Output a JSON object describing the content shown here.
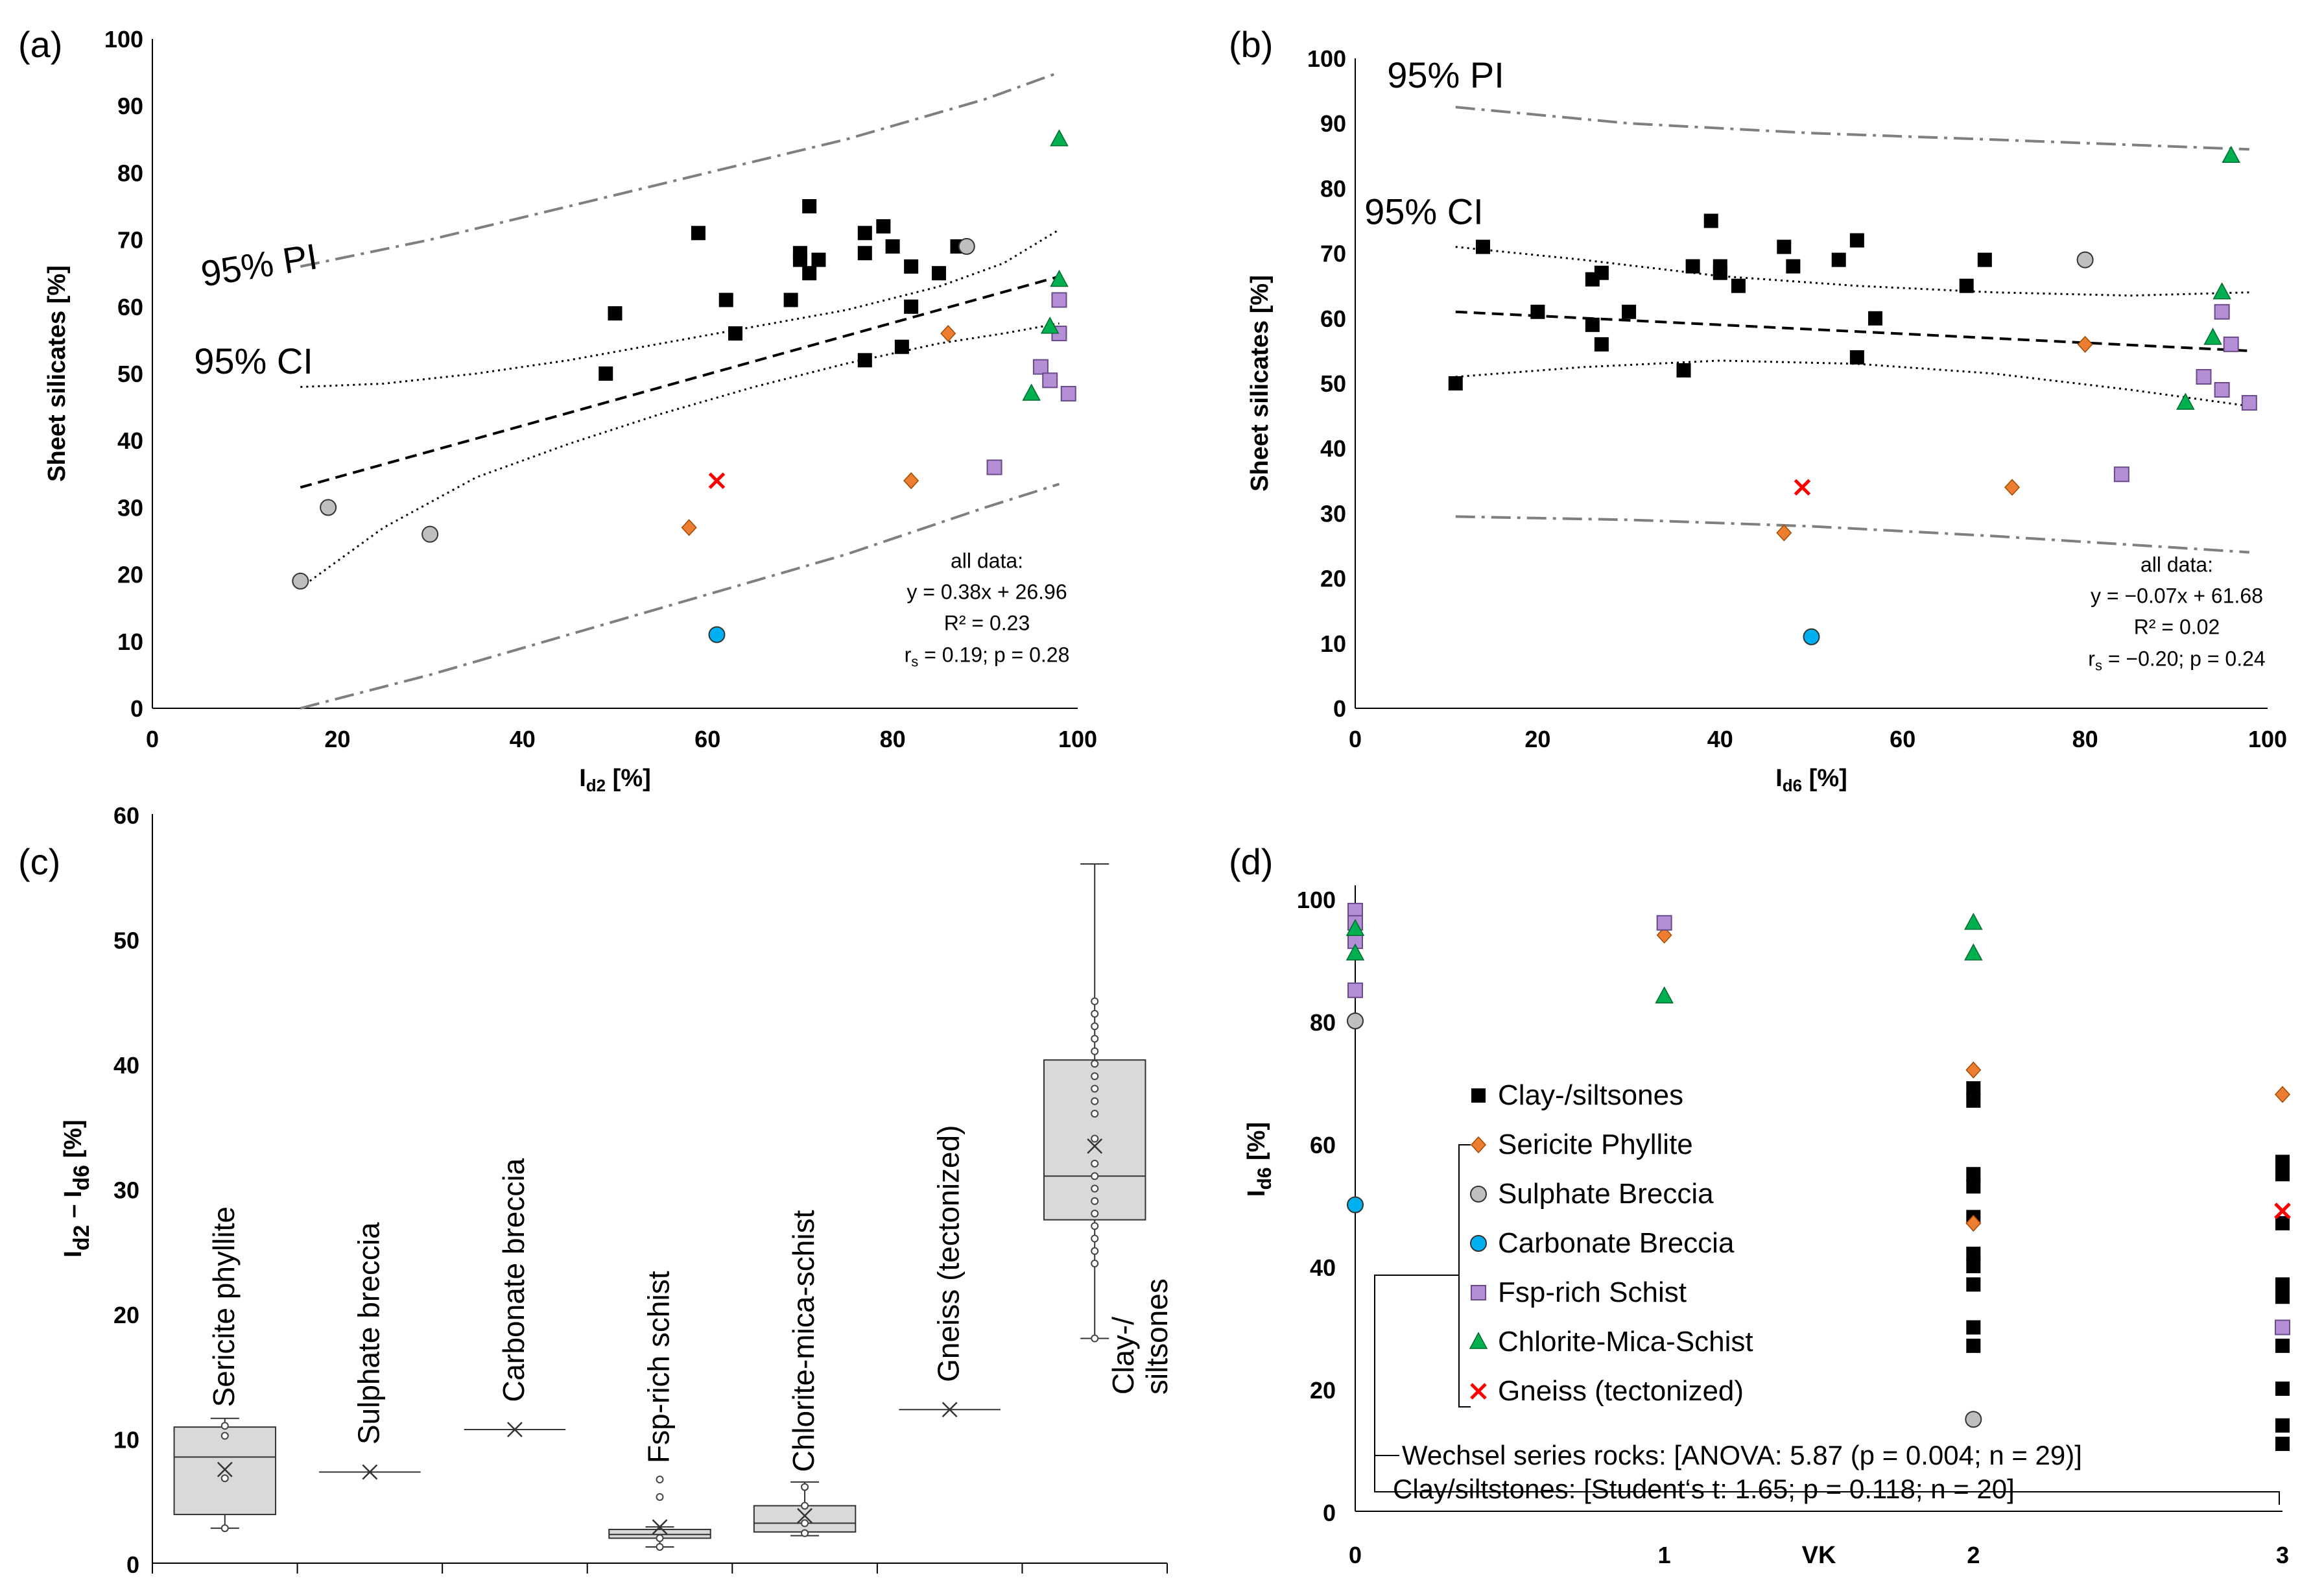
{
  "figure_labels": {
    "a": "(a)",
    "b": "(b)",
    "c": "(c)",
    "d": "(d)"
  },
  "colors": {
    "clay": "#000000",
    "sericite": "#ED7D31",
    "sulphate": "#BFBFBF",
    "carbonate": "#00B0F0",
    "fsp": "#B48FD6",
    "chlorite": "#00B050",
    "gneiss": "#FF0000",
    "box_fill": "#D9D9D9",
    "pi_line": "#7F7F7F"
  },
  "chart_data": [
    {
      "id": "a",
      "type": "scatter",
      "xlabel": "I",
      "xlabel_sub": "d2",
      "xlabel_unit": "[%]",
      "ylabel": "Sheet silicates [%]",
      "xlim": [
        0,
        100
      ],
      "ylim": [
        0,
        100
      ],
      "xticks": [
        0,
        20,
        40,
        60,
        80,
        100
      ],
      "yticks": [
        0,
        10,
        20,
        30,
        40,
        50,
        60,
        70,
        80,
        90,
        100
      ],
      "pi_label": "95% PI",
      "ci_label": "95% CI",
      "stats": [
        "all data:",
        "y = 0.38x + 26.96",
        "R² = 0.23",
        "r",
        "s",
        " = 0.19; p = 0.28"
      ],
      "fit": {
        "x": [
          16,
          98
        ],
        "y": [
          33,
          64.5
        ]
      },
      "ci_upper": {
        "x": [
          16,
          25,
          35,
          45,
          55,
          65,
          75,
          85,
          92,
          98
        ],
        "y": [
          48,
          48.5,
          50,
          52,
          54.5,
          57,
          59.5,
          63,
          66.5,
          71.5
        ]
      },
      "ci_lower": {
        "x": [
          16,
          25,
          35,
          45,
          55,
          65,
          75,
          85,
          92,
          98
        ],
        "y": [
          18,
          27,
          34.5,
          39.5,
          44,
          48,
          51.5,
          54.5,
          56,
          57.5
        ]
      },
      "pi_upper": {
        "x": [
          16,
          30,
          45,
          60,
          75,
          90,
          98
        ],
        "y": [
          66,
          70,
          75,
          80,
          85,
          91,
          95
        ]
      },
      "pi_lower": {
        "x": [
          16,
          30,
          45,
          60,
          75,
          90,
          98
        ],
        "y": [
          0,
          5,
          11,
          17,
          23,
          30,
          33.5
        ]
      },
      "series": [
        {
          "name": "Clay-/siltsones",
          "key": "clay",
          "marker": "square",
          "x": [
            49,
            50,
            59,
            62,
            63,
            69,
            70,
            70,
            71,
            71,
            72,
            77,
            77,
            77,
            79,
            80,
            81,
            82,
            82,
            85,
            87
          ],
          "y": [
            50,
            59,
            71,
            61,
            56,
            61,
            67,
            68,
            65,
            75,
            67,
            68,
            71,
            52,
            72,
            69,
            54,
            66,
            60,
            65,
            69
          ]
        },
        {
          "name": "Sericite Phyllite",
          "key": "sericite",
          "marker": "diamond",
          "x": [
            58,
            82,
            86
          ],
          "y": [
            27,
            34,
            56
          ]
        },
        {
          "name": "Sulphate Breccia",
          "key": "sulphate",
          "marker": "circle",
          "x": [
            16,
            19,
            30,
            88
          ],
          "y": [
            19,
            30,
            26,
            69
          ]
        },
        {
          "name": "Carbonate Breccia",
          "key": "carbonate",
          "marker": "circle",
          "x": [
            61
          ],
          "y": [
            11
          ]
        },
        {
          "name": "Fsp-rich Schist",
          "key": "fsp",
          "marker": "square",
          "x": [
            91,
            96,
            97,
            98,
            98,
            99
          ],
          "y": [
            36,
            51,
            49,
            61,
            56,
            47
          ]
        },
        {
          "name": "Chlorite-Mica-Schist",
          "key": "chlorite",
          "marker": "triangle",
          "x": [
            95,
            97,
            98,
            98
          ],
          "y": [
            47,
            57,
            64,
            85
          ]
        },
        {
          "name": "Gneiss (tectonized)",
          "key": "gneiss",
          "marker": "x",
          "x": [
            61
          ],
          "y": [
            34
          ]
        }
      ]
    },
    {
      "id": "b",
      "type": "scatter",
      "xlabel": "I",
      "xlabel_sub": "d6",
      "xlabel_unit": "[%]",
      "ylabel": "Sheet silicates [%]",
      "xlim": [
        0,
        100
      ],
      "ylim": [
        0,
        100
      ],
      "xticks": [
        0,
        20,
        40,
        60,
        80,
        100
      ],
      "yticks": [
        0,
        10,
        20,
        30,
        40,
        50,
        60,
        70,
        80,
        90,
        100
      ],
      "pi_label": "95% PI",
      "ci_label": "95% CI",
      "stats": [
        "all data:",
        "y = −0.07x + 61.68",
        "R² = 0.02",
        "r",
        "s",
        " = −0.20; p = 0.24"
      ],
      "fit": {
        "x": [
          11,
          98
        ],
        "y": [
          61,
          55
        ]
      },
      "ci_upper": {
        "x": [
          11,
          25,
          40,
          55,
          70,
          85,
          98
        ],
        "y": [
          71,
          69,
          66.5,
          65,
          64,
          63.5,
          64
        ]
      },
      "ci_lower": {
        "x": [
          11,
          25,
          40,
          55,
          70,
          85,
          98
        ],
        "y": [
          51,
          52.5,
          53.5,
          53,
          51.5,
          49,
          46.5
        ]
      },
      "pi_upper": {
        "x": [
          11,
          30,
          50,
          70,
          98
        ],
        "y": [
          92.5,
          90,
          88.5,
          87.5,
          86
        ]
      },
      "pi_lower": {
        "x": [
          11,
          30,
          50,
          70,
          98
        ],
        "y": [
          29.5,
          29,
          28,
          26.5,
          24
        ]
      },
      "series": [
        {
          "name": "Clay-/siltsones",
          "key": "clay",
          "marker": "square",
          "x": [
            11,
            14,
            20,
            26,
            26,
            27,
            27,
            30,
            36,
            37,
            39,
            40,
            40,
            42,
            47,
            48,
            53,
            55,
            55,
            57,
            67,
            69
          ],
          "y": [
            50,
            71,
            61,
            59,
            66,
            67,
            56,
            61,
            52,
            68,
            75,
            68,
            67,
            65,
            71,
            68,
            69,
            72,
            54,
            60,
            65,
            69
          ]
        },
        {
          "name": "Sericite Phyllite",
          "key": "sericite",
          "marker": "diamond",
          "x": [
            47,
            72,
            80
          ],
          "y": [
            27,
            34,
            56
          ]
        },
        {
          "name": "Sulphate Breccia",
          "key": "sulphate",
          "marker": "circle",
          "x": [
            80
          ],
          "y": [
            69
          ]
        },
        {
          "name": "Carbonate Breccia",
          "key": "carbonate",
          "marker": "circle",
          "x": [
            50
          ],
          "y": [
            11
          ]
        },
        {
          "name": "Fsp-rich Schist",
          "key": "fsp",
          "marker": "square",
          "x": [
            84,
            93,
            95,
            95,
            96,
            98
          ],
          "y": [
            36,
            51,
            61,
            49,
            56,
            47
          ]
        },
        {
          "name": "Chlorite-Mica-Schist",
          "key": "chlorite",
          "marker": "triangle",
          "x": [
            91,
            94,
            95,
            96
          ],
          "y": [
            47,
            57,
            64,
            85
          ]
        },
        {
          "name": "Gneiss (tectonized)",
          "key": "gneiss",
          "marker": "x",
          "x": [
            49
          ],
          "y": [
            34
          ]
        }
      ]
    },
    {
      "id": "c",
      "type": "box",
      "ylabel": "I",
      "ylabel_sub1": "d2",
      "ylabel_mid": " – I",
      "ylabel_sub2": "d6",
      "ylabel_unit": " [%]",
      "ylim": [
        0,
        60
      ],
      "yticks": [
        0,
        10,
        20,
        30,
        40,
        50,
        60
      ],
      "groups": [
        {
          "label": "Sericite phyllite",
          "min": 2.8,
          "q1": 3.9,
          "median": 8.5,
          "q3": 10.9,
          "max": 11.6,
          "mean": 7.5,
          "points": [
            2.8,
            6.8,
            10.2,
            11.0
          ]
        },
        {
          "label": "Sulphate breccia",
          "min": 7.3,
          "q1": 7.3,
          "median": 7.3,
          "q3": 7.3,
          "max": 7.3,
          "mean": 7.3,
          "points": []
        },
        {
          "label": "Carbonate breccia",
          "min": 10.7,
          "q1": 10.7,
          "median": 10.7,
          "q3": 10.7,
          "max": 10.7,
          "mean": 10.7,
          "points": []
        },
        {
          "label": "Fsp-rich schist",
          "min": 1.3,
          "q1": 2.0,
          "median": 2.3,
          "q3": 2.7,
          "max": 2.9,
          "mean": 2.9,
          "points": [
            1.3,
            2.0,
            5.3,
            6.7
          ]
        },
        {
          "label": "Chlorite-mica-schist",
          "min": 2.2,
          "q1": 2.5,
          "median": 3.2,
          "q3": 4.6,
          "max": 6.5,
          "mean": 3.8,
          "points": [
            2.4,
            3.2,
            4.6,
            6.1
          ]
        },
        {
          "label": "Gneiss (tectonized)",
          "min": 12.3,
          "q1": 12.3,
          "median": 12.3,
          "q3": 12.3,
          "max": 12.3,
          "mean": 12.3,
          "points": []
        },
        {
          "label": "Clay-/\nsiltsones",
          "min": 18.0,
          "q1": 27.5,
          "median": 31.0,
          "q3": 40.3,
          "max": 56.0,
          "mean": 33.4,
          "points": [
            18,
            24,
            25,
            26,
            27,
            28,
            29,
            30,
            31,
            32,
            34,
            36,
            37,
            38,
            39,
            40,
            41,
            42,
            43,
            44,
            45
          ]
        }
      ]
    },
    {
      "id": "d",
      "type": "scatter",
      "xlabel": "VK",
      "ylabel": "I",
      "ylabel_sub": "d6",
      "ylabel_unit": " [%]",
      "xlim": [
        0,
        3
      ],
      "ylim": [
        0,
        100
      ],
      "xticks": [
        0,
        1,
        2,
        3
      ],
      "yticks": [
        0,
        20,
        40,
        60,
        80,
        100
      ],
      "legend": [
        "Clay-/siltsones",
        "Sericite Phyllite",
        "Sulphate Breccia",
        "Carbonate Breccia",
        "Fsp-rich Schist",
        "Chlorite-Mica-Schist",
        "Gneiss (tectonized)"
      ],
      "stat1": "Wechsel series rocks: [ANOVA: 5.87 (p = 0.004; n = 29)]",
      "stat2": "Clay/siltstones: [Student‘s t: 1.65; p = 0.118; n = 20]",
      "series": [
        {
          "name": "Clay-/siltsones",
          "key": "clay",
          "marker": "square",
          "x": [
            2,
            2,
            2,
            2,
            2,
            2,
            2,
            2,
            2,
            2,
            3,
            3,
            3,
            3,
            3,
            3,
            3,
            3,
            3
          ],
          "y": [
            69,
            67,
            55,
            53,
            48,
            42,
            40,
            37,
            30,
            27,
            57,
            55,
            47,
            37,
            35,
            27,
            20,
            14,
            11
          ]
        },
        {
          "name": "Sericite Phyllite",
          "key": "sericite",
          "marker": "diamond",
          "x": [
            0,
            1,
            2,
            2,
            3
          ],
          "y": [
            96,
            94,
            72,
            47,
            68
          ]
        },
        {
          "name": "Sulphate Breccia",
          "key": "sulphate",
          "marker": "circle",
          "x": [
            0,
            2
          ],
          "y": [
            80,
            15
          ]
        },
        {
          "name": "Carbonate Breccia",
          "key": "carbonate",
          "marker": "circle",
          "x": [
            0
          ],
          "y": [
            50
          ]
        },
        {
          "name": "Fsp-rich Schist",
          "key": "fsp",
          "marker": "square",
          "x": [
            0,
            0,
            0,
            0,
            1,
            3
          ],
          "y": [
            98,
            96,
            93,
            85,
            96,
            30
          ]
        },
        {
          "name": "Chlorite-Mica-Schist",
          "key": "chlorite",
          "marker": "triangle",
          "x": [
            0,
            0,
            1,
            2,
            2
          ],
          "y": [
            95,
            91,
            84,
            96,
            91
          ]
        },
        {
          "name": "Gneiss (tectonized)",
          "key": "gneiss",
          "marker": "x",
          "x": [
            3
          ],
          "y": [
            49
          ]
        }
      ]
    }
  ]
}
